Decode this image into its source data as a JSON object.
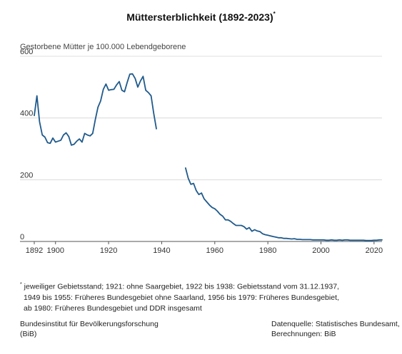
{
  "chart_data": {
    "type": "line",
    "title": "Müttersterblichkeit (1892-2023)",
    "title_marker": "*",
    "ylabel": "Gestorbene Mütter je 100.000 Lebendgeborene",
    "xlabel": "",
    "xlim": [
      1892,
      2023
    ],
    "ylim": [
      0,
      600
    ],
    "x_ticks": [
      1892,
      1900,
      1920,
      1940,
      1960,
      1980,
      2000,
      2020
    ],
    "y_ticks": [
      0,
      200,
      400,
      600
    ],
    "grid": true,
    "line_color": "#1f5a8c",
    "segments": [
      {
        "x": [
          1892,
          1893,
          1894,
          1895,
          1896,
          1897,
          1898,
          1899,
          1900,
          1901,
          1902,
          1903,
          1904,
          1905,
          1906,
          1907,
          1908,
          1909,
          1910,
          1911,
          1912,
          1913,
          1914,
          1915,
          1916,
          1917,
          1918,
          1919,
          1920,
          1921,
          1922,
          1923,
          1924,
          1925,
          1926,
          1927,
          1928,
          1929,
          1930,
          1931,
          1932,
          1933,
          1934,
          1935,
          1936,
          1937,
          1938
        ],
        "y": [
          408,
          472,
          388,
          345,
          338,
          320,
          318,
          335,
          322,
          325,
          328,
          345,
          352,
          340,
          312,
          315,
          325,
          332,
          322,
          350,
          345,
          342,
          350,
          395,
          435,
          455,
          493,
          510,
          490,
          492,
          493,
          507,
          518,
          490,
          485,
          515,
          542,
          543,
          528,
          500,
          520,
          535,
          490,
          482,
          472,
          415,
          365
        ]
      },
      {
        "x": [
          1949,
          1950,
          1951,
          1952,
          1953,
          1954,
          1955,
          1956,
          1957,
          1958,
          1959,
          1960,
          1961,
          1962,
          1963,
          1964,
          1965,
          1966,
          1967,
          1968,
          1969,
          1970,
          1971,
          1972,
          1973,
          1974,
          1975,
          1976,
          1977,
          1978,
          1979,
          1980,
          1981,
          1982,
          1983,
          1984,
          1985,
          1986,
          1987,
          1988,
          1989,
          1990,
          1991,
          1992,
          1993,
          1994,
          1995,
          1996,
          1997,
          1998,
          1999,
          2000,
          2001,
          2002,
          2003,
          2004,
          2005,
          2006,
          2007,
          2008,
          2009,
          2010,
          2011,
          2012,
          2013,
          2014,
          2015,
          2016,
          2017,
          2018,
          2019,
          2020,
          2021,
          2022,
          2023
        ],
        "y": [
          238,
          205,
          185,
          188,
          165,
          152,
          157,
          138,
          128,
          118,
          110,
          106,
          98,
          88,
          82,
          70,
          70,
          65,
          58,
          52,
          52,
          52,
          48,
          40,
          45,
          33,
          38,
          34,
          32,
          25,
          22,
          20,
          18,
          16,
          14,
          12,
          12,
          10,
          10,
          9,
          8,
          9,
          7,
          7,
          6,
          6,
          6,
          6,
          5,
          5,
          5,
          5,
          5,
          4,
          4,
          5,
          4,
          4,
          5,
          4,
          5,
          5,
          4,
          4,
          4,
          4,
          4,
          4,
          3,
          3,
          3,
          4,
          4,
          5,
          5
        ]
      }
    ]
  },
  "footnote": {
    "marker": "*",
    "lines": [
      "jeweiliger Gebietsstand; 1921: ohne Saargebiet, 1922 bis 1938: Gebietsstand vom 31.12.1937,",
      "1949 bis 1955: Früheres Bundesgebiet ohne Saarland, 1956 bis 1979: Früheres Bundesgebiet,",
      "ab 1980: Früheres Bundesgebiet und DDR insgesamt"
    ]
  },
  "publisher": {
    "line1": "Bundesinstitut für Bevölkerungsforschung",
    "line2": "(BiB)"
  },
  "source": {
    "line1": "Datenquelle: Statistisches Bundesamt,",
    "line2": "Berechnungen: BiB"
  }
}
